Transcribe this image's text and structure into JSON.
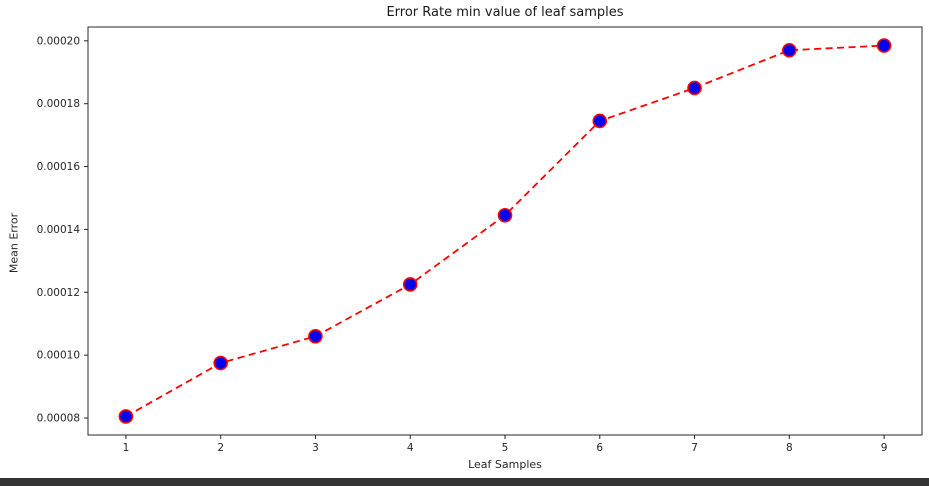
{
  "window": {
    "background": "#ffffff",
    "bottom_bar_color": "#343434"
  },
  "chart_data": {
    "type": "line",
    "title": "Error Rate min value of leaf samples",
    "xlabel": "Leaf Samples",
    "ylabel": "Mean Error",
    "x": [
      1,
      2,
      3,
      4,
      5,
      6,
      7,
      8,
      9
    ],
    "y": [
      8.05e-05,
      9.75e-05,
      0.000106,
      0.0001225,
      0.0001445,
      0.0001745,
      0.000185,
      0.000197,
      0.0001985
    ],
    "xticks": {
      "values": [
        1,
        2,
        3,
        4,
        5,
        6,
        7,
        8,
        9
      ],
      "labels": [
        "1",
        "2",
        "3",
        "4",
        "5",
        "6",
        "7",
        "8",
        "9"
      ]
    },
    "yticks": {
      "values": [
        8e-05,
        0.0001,
        0.00012,
        0.00014,
        0.00016,
        0.00018,
        0.0002
      ],
      "labels": [
        "0.00008",
        "0.00010",
        "0.00012",
        "0.00014",
        "0.00016",
        "0.00018",
        "0.00020"
      ]
    },
    "xlim": [
      0.6,
      9.4
    ],
    "ylim": [
      7.46e-05,
      0.0002044
    ],
    "grid": false,
    "legend": null,
    "style": {
      "line_color": "#ff0000",
      "line_style": "dashed",
      "line_width": 1.8,
      "dash_pattern": "7,4.5",
      "marker": "circle",
      "marker_radius": 6.5,
      "marker_face_color": "#0000ee",
      "marker_edge_color": "#ff0000",
      "marker_edge_width": 1.6,
      "spine_color": "#2a2a2a",
      "tick_color": "#262626",
      "tick_label_size": 10.5,
      "text_color": "#1a1a1a"
    }
  }
}
